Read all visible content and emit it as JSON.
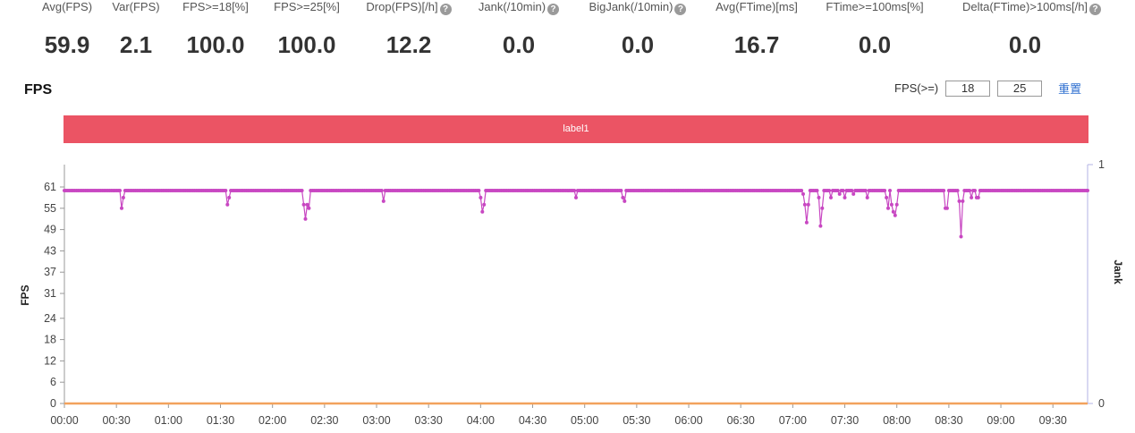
{
  "stats": [
    {
      "label": "Avg(FPS)",
      "value": "59.9",
      "help": false
    },
    {
      "label": "Var(FPS)",
      "value": "2.1",
      "help": false
    },
    {
      "label": "FPS>=18[%]",
      "value": "100.0",
      "help": false
    },
    {
      "label": "FPS>=25[%]",
      "value": "100.0",
      "help": false
    },
    {
      "label": "Drop(FPS)[/h]",
      "value": "12.2",
      "help": true
    },
    {
      "label": "Jank(/10min)",
      "value": "0.0",
      "help": true
    },
    {
      "label": "BigJank(/10min)",
      "value": "0.0",
      "help": true
    },
    {
      "label": "Avg(FTime)[ms]",
      "value": "16.7",
      "help": false
    },
    {
      "label": "FTime>=100ms[%]",
      "value": "0.0",
      "help": false
    },
    {
      "label": "Delta(FTime)>100ms[/h]",
      "value": "0.0",
      "help": true
    }
  ],
  "help_icon": "question-mark-icon",
  "chart_title": "FPS",
  "threshold": {
    "label": "FPS(>=)",
    "value_low": "18",
    "value_high": "25",
    "reset_label": "重置"
  },
  "label_bar": {
    "text": "label1",
    "color": "#eb5464"
  },
  "colors": {
    "fps_series": "#c847c2",
    "jank_series": "#f2a25c",
    "right_axis": "#b3b3e6"
  },
  "chart_data": {
    "type": "line",
    "title": "",
    "ylabel": "FPS",
    "y2label": "Jank",
    "ylim": [
      0,
      61
    ],
    "y_ticks": [
      0,
      6,
      12,
      18,
      24,
      31,
      37,
      43,
      49,
      55,
      61
    ],
    "y2lim": [
      0,
      1
    ],
    "y2_ticks": [
      0,
      1
    ],
    "x_unit": "seconds",
    "x_range": [
      0,
      590
    ],
    "x_ticks": [
      "00:00",
      "00:30",
      "01:00",
      "01:30",
      "02:00",
      "02:30",
      "03:00",
      "03:30",
      "04:00",
      "04:30",
      "05:00",
      "05:30",
      "06:00",
      "06:30",
      "07:00",
      "07:30",
      "08:00",
      "08:30",
      "09:00",
      "09:30"
    ],
    "baseline_fps": 60,
    "fps_dips": [
      {
        "t": 33,
        "fps": 55
      },
      {
        "t": 34,
        "fps": 58
      },
      {
        "t": 94,
        "fps": 56
      },
      {
        "t": 95,
        "fps": 58
      },
      {
        "t": 138,
        "fps": 56
      },
      {
        "t": 139,
        "fps": 52
      },
      {
        "t": 140,
        "fps": 56
      },
      {
        "t": 141,
        "fps": 55
      },
      {
        "t": 184,
        "fps": 57
      },
      {
        "t": 240,
        "fps": 58
      },
      {
        "t": 241,
        "fps": 54
      },
      {
        "t": 242,
        "fps": 56
      },
      {
        "t": 295,
        "fps": 58
      },
      {
        "t": 322,
        "fps": 58
      },
      {
        "t": 323,
        "fps": 57
      },
      {
        "t": 426,
        "fps": 59
      },
      {
        "t": 427,
        "fps": 56
      },
      {
        "t": 428,
        "fps": 51
      },
      {
        "t": 429,
        "fps": 56
      },
      {
        "t": 435,
        "fps": 58
      },
      {
        "t": 436,
        "fps": 50
      },
      {
        "t": 437,
        "fps": 55
      },
      {
        "t": 442,
        "fps": 58
      },
      {
        "t": 447,
        "fps": 59
      },
      {
        "t": 450,
        "fps": 58
      },
      {
        "t": 455,
        "fps": 59
      },
      {
        "t": 463,
        "fps": 58
      },
      {
        "t": 474,
        "fps": 58
      },
      {
        "t": 475,
        "fps": 55
      },
      {
        "t": 477,
        "fps": 56
      },
      {
        "t": 478,
        "fps": 54
      },
      {
        "t": 479,
        "fps": 53
      },
      {
        "t": 480,
        "fps": 56
      },
      {
        "t": 508,
        "fps": 55
      },
      {
        "t": 509,
        "fps": 55
      },
      {
        "t": 516,
        "fps": 57
      },
      {
        "t": 517,
        "fps": 47
      },
      {
        "t": 518,
        "fps": 57
      },
      {
        "t": 523,
        "fps": 58
      },
      {
        "t": 526,
        "fps": 58
      },
      {
        "t": 527,
        "fps": 58
      }
    ],
    "series": [
      {
        "values_source": "baseline_fps with fps_dips"
      },
      {
        "values": [
          0,
          0
        ]
      }
    ],
    "grid": false
  }
}
